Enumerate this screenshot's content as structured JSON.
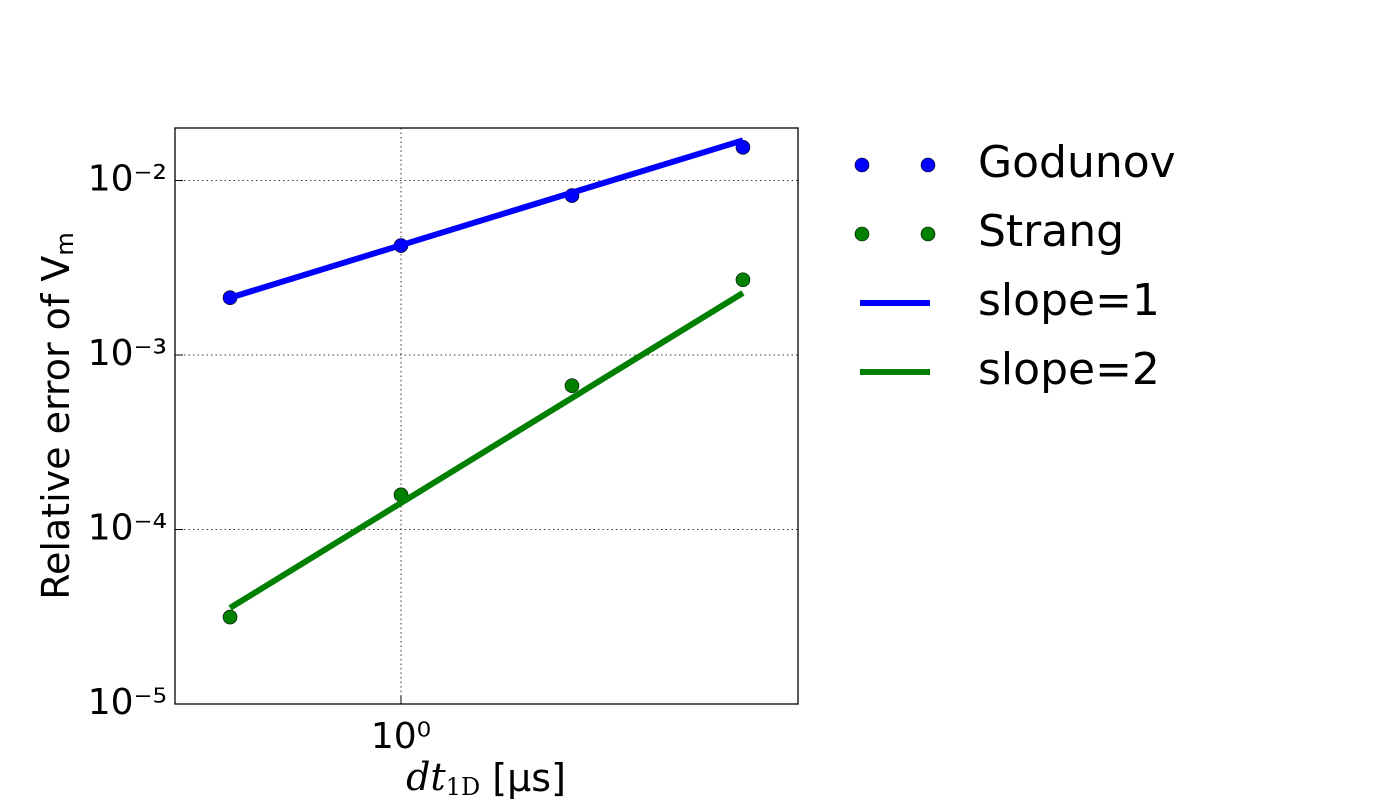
{
  "chart_data": {
    "type": "line",
    "x_label": {
      "main": "dt",
      "sub": "1D",
      "unit": " [μs]"
    },
    "y_label": {
      "main": "Relative error of V",
      "sub": "m"
    },
    "x": [
      0.5,
      1,
      2,
      4
    ],
    "series": [
      {
        "name": "Godunov",
        "color": "#0000ff",
        "style": "markers",
        "values": [
          0.00213,
          0.00424,
          0.0082,
          0.0155
        ]
      },
      {
        "name": "Strang",
        "color": "#008000",
        "style": "markers",
        "values": [
          3.15e-05,
          0.000158,
          0.000667,
          0.0027
        ]
      },
      {
        "name": "slope=1",
        "color": "#0000ff",
        "style": "line",
        "values": [
          0.00213,
          0.00426,
          0.00852,
          0.017
        ]
      },
      {
        "name": "slope=2",
        "color": "#008000",
        "style": "line",
        "values": [
          3.55e-05,
          0.000142,
          0.000568,
          0.00227
        ]
      }
    ],
    "xscale": "log",
    "yscale": "log",
    "xlim": [
      0.4,
      5
    ],
    "ylim": [
      1e-05,
      0.02
    ],
    "xticks": [
      {
        "value": 1,
        "label": "10⁰"
      }
    ],
    "yticks": [
      {
        "value": 1e-05,
        "label": "10⁻⁵"
      },
      {
        "value": 0.0001,
        "label": "10⁻⁴"
      },
      {
        "value": 0.001,
        "label": "10⁻³"
      },
      {
        "value": 0.01,
        "label": "10⁻²"
      }
    ],
    "grid": true,
    "legend": "outside-right"
  }
}
